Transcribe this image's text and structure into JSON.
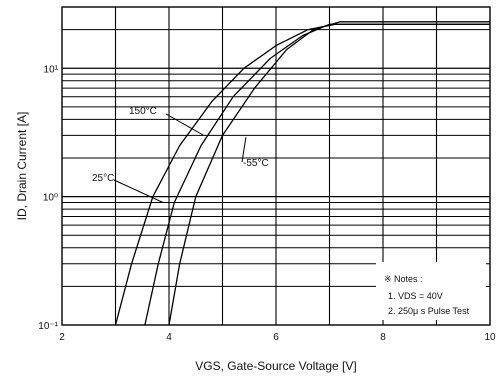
{
  "chart_data": {
    "type": "line",
    "xlabel": "VGS, Gate-Source Voltage [V]",
    "ylabel": "ID, Drain Current [A]",
    "x_ticks": [
      "2",
      "4",
      "6",
      "8",
      "10"
    ],
    "y_ticks": [
      "10⁻¹",
      "10⁰",
      "10¹"
    ],
    "xlim": [
      2,
      10
    ],
    "ylim": [
      0.1,
      30
    ],
    "yscale": "log",
    "grid": true,
    "series": [
      {
        "name": "150°C",
        "x": [
          3.0,
          3.3,
          3.7,
          4.2,
          4.8,
          5.4,
          6.0,
          6.6,
          7.1
        ],
        "y": [
          0.1,
          0.3,
          1.0,
          2.5,
          5.5,
          10,
          15,
          20,
          22
        ]
      },
      {
        "name": "25°C",
        "x": [
          3.55,
          3.8,
          4.1,
          4.6,
          5.2,
          5.9,
          6.5,
          7.0
        ],
        "y": [
          0.1,
          0.3,
          0.9,
          2.5,
          6,
          12,
          18,
          22
        ]
      },
      {
        "name": "-55°C",
        "x": [
          4.0,
          4.2,
          4.5,
          5.0,
          5.6,
          6.2,
          6.7,
          7.2
        ],
        "y": [
          0.1,
          0.3,
          1.0,
          3.0,
          7,
          14,
          20,
          23
        ]
      }
    ],
    "annotations": {
      "notes_title": "※ Notes :",
      "note1": "1. VDS = 40V",
      "note2": "2. 250μ s Pulse Test"
    }
  }
}
